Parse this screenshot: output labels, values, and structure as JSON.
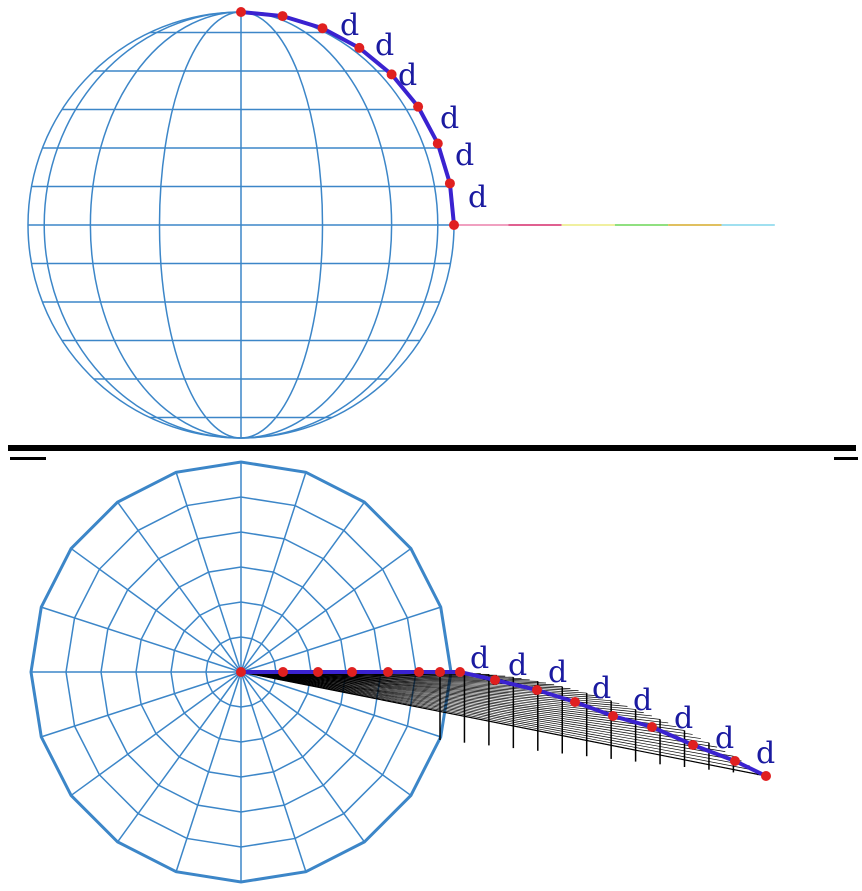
{
  "top_view": {
    "labels": [
      "d",
      "d",
      "d",
      "d",
      "d",
      "d"
    ]
  },
  "bottom_view": {
    "labels": [
      "d",
      "d",
      "d",
      "d",
      "d",
      "d",
      "d",
      "d"
    ]
  }
}
